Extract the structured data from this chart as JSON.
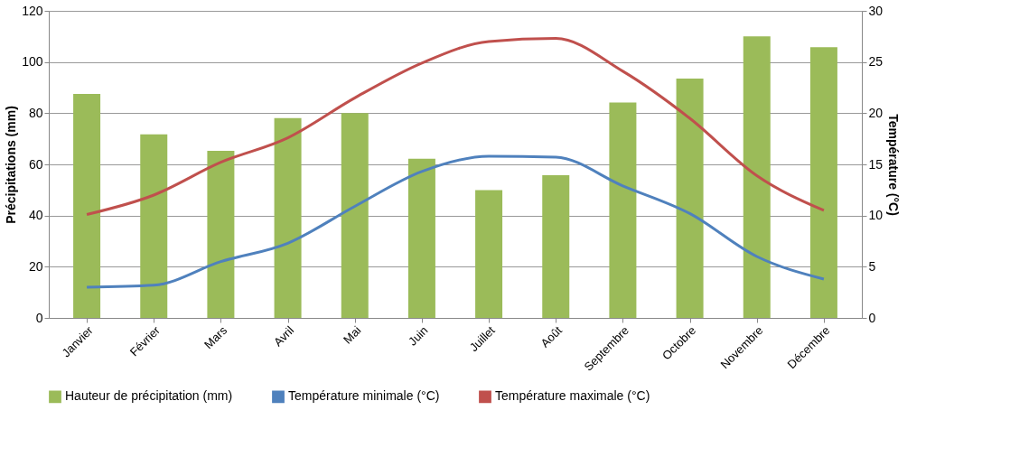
{
  "chart_data": {
    "type": "bar",
    "ylabel": "Précipitations (mm)",
    "y2label": "Température (°C)",
    "categories": [
      "Janvier",
      "Février",
      "Mars",
      "Avril",
      "Mai",
      "Juin",
      "Juillet",
      "Août",
      "Septembre",
      "Octobre",
      "Novembre",
      "Décembre"
    ],
    "series": [
      {
        "name": "Hauteur de précipitation (mm)",
        "color": "#9bbb59",
        "values": [
          87.5,
          71.7,
          65.3,
          78.1,
          80,
          62.2,
          49.9,
          55.8,
          84.2,
          93.5,
          110,
          105.8
        ]
      },
      {
        "name": "Température minimale (°C)",
        "type": "line",
        "axis": "y2",
        "color": "#4f81bd",
        "values": [
          3.0,
          3.2,
          5.5,
          7.3,
          10.9,
          14.3,
          15.8,
          15.7,
          12.9,
          10.2,
          6.0,
          3.8
        ]
      },
      {
        "name": "Température maximale (°C)",
        "type": "line",
        "axis": "y2",
        "color": "#c0504d",
        "values": [
          10.1,
          12.0,
          15.2,
          17.6,
          21.5,
          24.9,
          27.0,
          27.3,
          24.1,
          19.5,
          13.9,
          10.5
        ]
      }
    ],
    "ylim": [
      0,
      120
    ],
    "yticks": [
      0,
      20,
      40,
      60,
      80,
      100,
      120
    ],
    "y2lim": [
      0,
      30
    ],
    "y2ticks": [
      0,
      5,
      10,
      15,
      20,
      25,
      30
    ],
    "grid": "y",
    "legend": "bottom"
  }
}
